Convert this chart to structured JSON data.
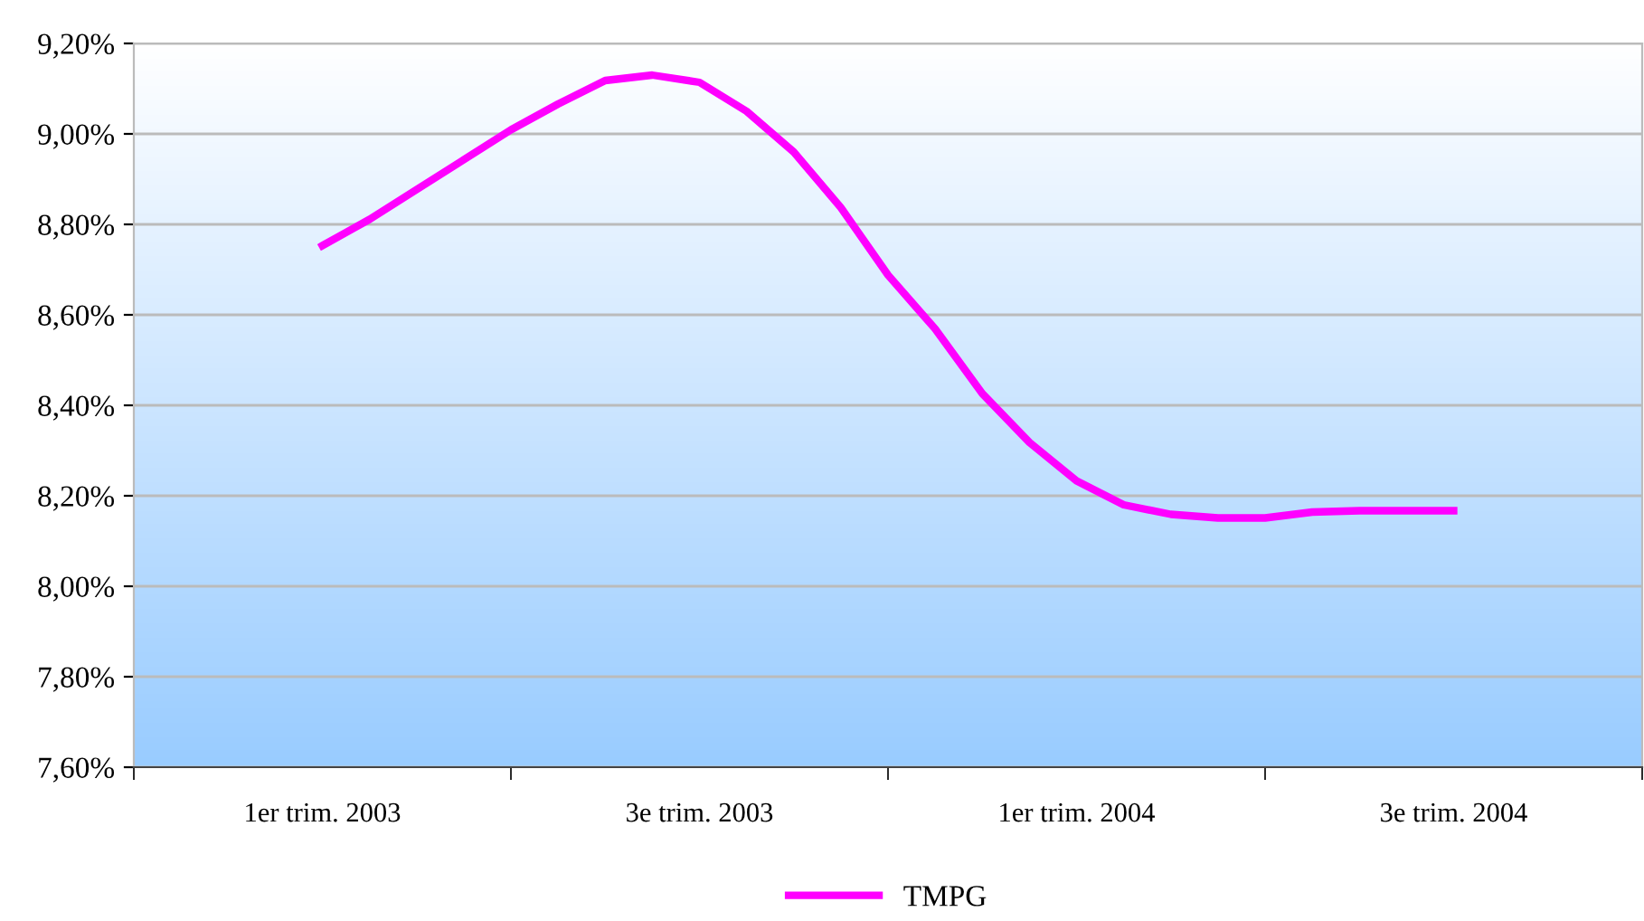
{
  "chart_data": {
    "type": "line",
    "categories": [
      "1er trim. 2003",
      null,
      null,
      null,
      null,
      null,
      null,
      null,
      "3e trim. 2003",
      null,
      null,
      null,
      null,
      null,
      null,
      null,
      "1er trim. 2004",
      null,
      null,
      null,
      null,
      null,
      null,
      null,
      "3e trim. 2004"
    ],
    "series": [
      {
        "name": "TMPG",
        "color": "#ff00ff",
        "values": [
          8.753,
          8.811,
          8.877,
          8.943,
          9.009,
          9.066,
          9.118,
          9.13,
          9.114,
          9.05,
          8.96,
          8.837,
          8.688,
          8.569,
          8.426,
          8.318,
          8.233,
          8.18,
          8.159,
          8.151,
          8.151,
          8.164,
          8.167,
          8.167,
          8.167
        ]
      }
    ],
    "ylim": [
      7.6,
      9.2
    ],
    "yticks": [
      {
        "value": 7.6,
        "label": "7,60%"
      },
      {
        "value": 7.8,
        "label": "7,80%"
      },
      {
        "value": 8.0,
        "label": "8,00%"
      },
      {
        "value": 8.2,
        "label": "8,20%"
      },
      {
        "value": 8.4,
        "label": "8,40%"
      },
      {
        "value": 8.6,
        "label": "8,60%"
      },
      {
        "value": 8.8,
        "label": "8,80%"
      },
      {
        "value": 9.0,
        "label": "9,00%"
      },
      {
        "value": 9.2,
        "label": "9,20%"
      }
    ],
    "grid": "y",
    "legend": "bottom",
    "marker": "none",
    "line_style": "solid"
  }
}
